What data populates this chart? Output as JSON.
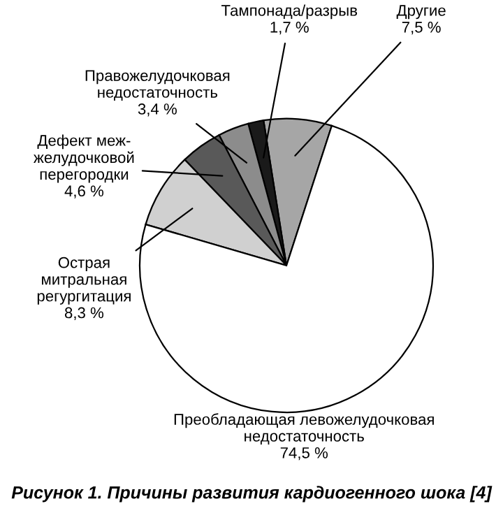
{
  "chart_data": {
    "type": "pie",
    "title": "Рисунок 1. Причины развития кардиогенного шока [4]",
    "categories": [
      "Другие",
      "Тампонада/разрыв",
      "Правожелудочковая\nнедостаточность",
      "Дефект меж-\nжелудочковой\nперегородки",
      "Острая\nмитральная\nрегургитация",
      "Преобладающая левожелудочковая\nнедостаточность"
    ],
    "values": [
      7.5,
      1.7,
      3.4,
      4.6,
      8.3,
      74.5
    ],
    "value_labels": [
      "7,5 %",
      "1,7 %",
      "3,4 %",
      "4,6 %",
      "8,3 %",
      "74,5 %"
    ],
    "colors": [
      "#a6a6a6",
      "#1a1a1a",
      "#8c8c8c",
      "#595959",
      "#d0d0d0",
      "#ffffff"
    ]
  }
}
